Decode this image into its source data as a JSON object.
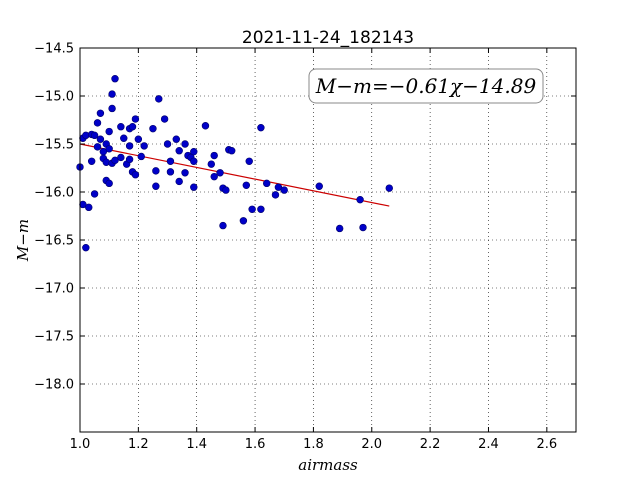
{
  "chart_data": {
    "type": "scatter",
    "title": "2021-11-24_182143",
    "xlabel": "airmass",
    "ylabel": "M−m",
    "xlim": [
      1.0,
      2.7
    ],
    "ylim": [
      -18.5,
      -14.5
    ],
    "y_inverted": true,
    "grid": true,
    "x_ticks": [
      "1.0",
      "1.2",
      "1.4",
      "1.6",
      "1.8",
      "2.0",
      "2.2",
      "2.4",
      "2.6"
    ],
    "y_ticks": [
      "−14.5",
      "−15.0",
      "−15.5",
      "−16.0",
      "−16.5",
      "−17.0",
      "−17.5",
      "−18.0"
    ],
    "annotation": "M−m=−0.61χ−14.89",
    "point_color": "#0000c8",
    "fit_color": "#cc0000",
    "fit": {
      "slope": -0.61,
      "intercept": -14.89,
      "x_range": [
        1.0,
        2.06
      ]
    },
    "points": [
      [
        1.0,
        -15.74
      ],
      [
        1.01,
        -15.44
      ],
      [
        1.01,
        -16.13
      ],
      [
        1.02,
        -15.41
      ],
      [
        1.02,
        -16.58
      ],
      [
        1.03,
        -16.16
      ],
      [
        1.04,
        -15.4
      ],
      [
        1.04,
        -15.68
      ],
      [
        1.05,
        -16.02
      ],
      [
        1.05,
        -15.41
      ],
      [
        1.06,
        -15.53
      ],
      [
        1.06,
        -15.28
      ],
      [
        1.07,
        -15.18
      ],
      [
        1.07,
        -15.45
      ],
      [
        1.08,
        -15.58
      ],
      [
        1.08,
        -15.65
      ],
      [
        1.09,
        -15.5
      ],
      [
        1.09,
        -15.88
      ],
      [
        1.09,
        -15.69
      ],
      [
        1.1,
        -15.37
      ],
      [
        1.1,
        -15.55
      ],
      [
        1.1,
        -15.91
      ],
      [
        1.11,
        -15.7
      ],
      [
        1.11,
        -15.13
      ],
      [
        1.11,
        -14.98
      ],
      [
        1.12,
        -14.82
      ],
      [
        1.12,
        -15.67
      ],
      [
        1.14,
        -15.32
      ],
      [
        1.14,
        -15.64
      ],
      [
        1.15,
        -15.44
      ],
      [
        1.16,
        -15.71
      ],
      [
        1.17,
        -15.52
      ],
      [
        1.17,
        -15.66
      ],
      [
        1.17,
        -15.34
      ],
      [
        1.18,
        -15.79
      ],
      [
        1.18,
        -15.32
      ],
      [
        1.19,
        -15.24
      ],
      [
        1.19,
        -15.82
      ],
      [
        1.2,
        -15.45
      ],
      [
        1.21,
        -15.63
      ],
      [
        1.22,
        -15.52
      ],
      [
        1.25,
        -15.34
      ],
      [
        1.26,
        -15.78
      ],
      [
        1.26,
        -15.94
      ],
      [
        1.27,
        -15.03
      ],
      [
        1.29,
        -15.24
      ],
      [
        1.3,
        -15.5
      ],
      [
        1.31,
        -15.68
      ],
      [
        1.31,
        -15.79
      ],
      [
        1.33,
        -15.45
      ],
      [
        1.34,
        -15.57
      ],
      [
        1.34,
        -15.89
      ],
      [
        1.36,
        -15.5
      ],
      [
        1.36,
        -15.8
      ],
      [
        1.37,
        -15.62
      ],
      [
        1.38,
        -15.64
      ],
      [
        1.39,
        -15.58
      ],
      [
        1.39,
        -15.68
      ],
      [
        1.39,
        -15.95
      ],
      [
        1.43,
        -15.31
      ],
      [
        1.45,
        -15.71
      ],
      [
        1.46,
        -15.84
      ],
      [
        1.46,
        -15.62
      ],
      [
        1.48,
        -15.8
      ],
      [
        1.49,
        -16.35
      ],
      [
        1.49,
        -15.96
      ],
      [
        1.5,
        -15.98
      ],
      [
        1.51,
        -15.56
      ],
      [
        1.52,
        -15.57
      ],
      [
        1.56,
        -16.3
      ],
      [
        1.57,
        -15.93
      ],
      [
        1.58,
        -15.68
      ],
      [
        1.59,
        -16.18
      ],
      [
        1.62,
        -15.33
      ],
      [
        1.62,
        -16.18
      ],
      [
        1.64,
        -15.91
      ],
      [
        1.67,
        -16.03
      ],
      [
        1.68,
        -15.95
      ],
      [
        1.7,
        -15.98
      ],
      [
        1.82,
        -15.94
      ],
      [
        1.89,
        -16.38
      ],
      [
        1.96,
        -16.08
      ],
      [
        1.97,
        -16.37
      ],
      [
        2.06,
        -15.96
      ]
    ]
  }
}
